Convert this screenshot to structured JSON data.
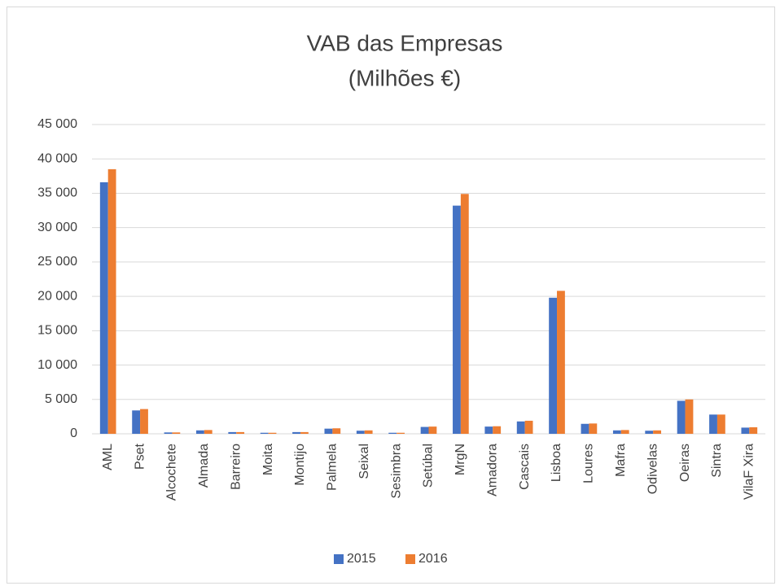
{
  "chart_data": {
    "type": "bar",
    "title": "VAB das Empresas",
    "subtitle": "(Milhões €)",
    "categories": [
      "AML",
      "Pset",
      "Alcochete",
      "Almada",
      "Barreiro",
      "Moita",
      "Montijo",
      "Palmela",
      "Seixal",
      "Sesimbra",
      "Setúbal",
      "MrgN",
      "Amadora",
      "Cascais",
      "Lisboa",
      "Loures",
      "Mafra",
      "Odivelas",
      "Oeiras",
      "Sintra",
      "VilaF Xira"
    ],
    "series": [
      {
        "name": "2015",
        "color": "#4472c4",
        "values": [
          36600,
          3400,
          200,
          500,
          250,
          150,
          250,
          750,
          450,
          150,
          1000,
          33200,
          1050,
          1800,
          19800,
          1450,
          500,
          450,
          4800,
          2800,
          900
        ]
      },
      {
        "name": "2016",
        "color": "#ed7d31",
        "values": [
          38500,
          3600,
          200,
          550,
          250,
          150,
          250,
          800,
          500,
          150,
          1050,
          34900,
          1100,
          1900,
          20800,
          1500,
          550,
          500,
          5000,
          2800,
          950
        ]
      }
    ],
    "ylim": [
      0,
      45000
    ],
    "yticks": [
      0,
      {
        "value": 5000,
        "label": "5 000"
      },
      {
        "value": 10000,
        "label": "10 000"
      },
      {
        "value": 15000,
        "label": "15 000"
      },
      {
        "value": 20000,
        "label": "20 000"
      },
      {
        "value": 25000,
        "label": "25 000"
      },
      {
        "value": 30000,
        "label": "30 000"
      },
      {
        "value": 35000,
        "label": "35 000"
      },
      {
        "value": 40000,
        "label": "40 000"
      },
      {
        "value": 45000,
        "label": "45 000"
      }
    ],
    "grid": true,
    "legend": "bottom"
  }
}
